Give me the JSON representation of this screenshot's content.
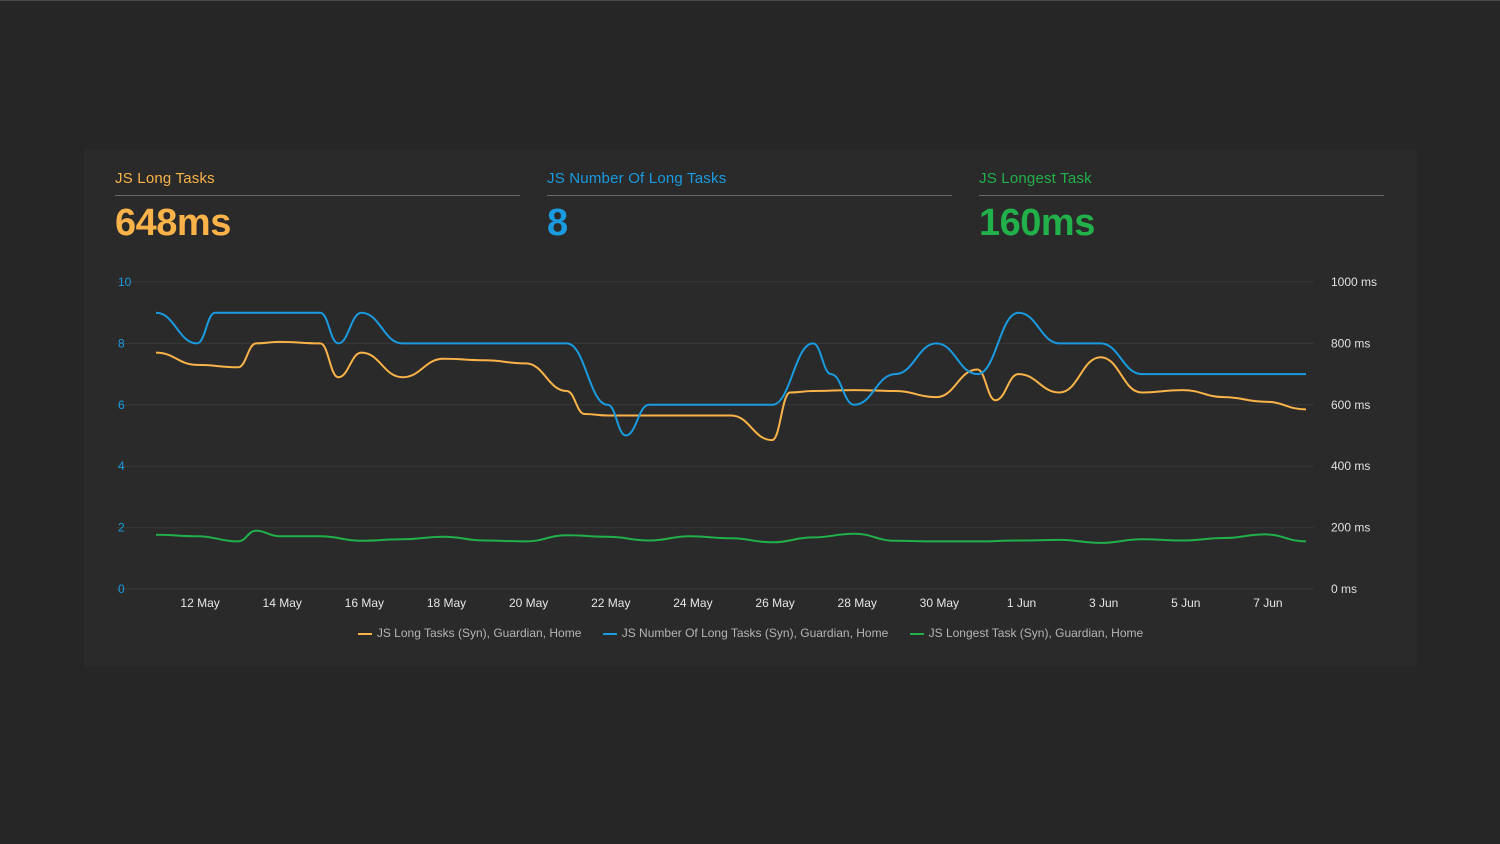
{
  "metrics": [
    {
      "label": "JS Long Tasks",
      "value": "648ms",
      "color": "#f9b349"
    },
    {
      "label": "JS Number Of Long Tasks",
      "value": "8",
      "color": "#1a9be0"
    },
    {
      "label": "JS Longest Task",
      "value": "160ms",
      "color": "#22b04b"
    }
  ],
  "chart_data": {
    "type": "line",
    "x_start": "2019-05-11",
    "x_end": "2019-06-08",
    "x_tick_labels": [
      "12 May",
      "14 May",
      "16 May",
      "18 May",
      "20 May",
      "22 May",
      "24 May",
      "26 May",
      "28 May",
      "30 May",
      "1 Jun",
      "3 Jun",
      "5 Jun",
      "7 Jun"
    ],
    "y_left": {
      "min": 0,
      "max": 10,
      "ticks": [
        "0",
        "2",
        "4",
        "6",
        "8",
        "10"
      ],
      "color": "#1a9be0"
    },
    "y_right": {
      "min": 0,
      "max": 1000,
      "ticks": [
        "0 ms",
        "200 ms",
        "400 ms",
        "600 ms",
        "800 ms",
        "1000 ms"
      ],
      "color": "#e0e0e0"
    },
    "grid": true,
    "legend_position": "bottom",
    "series": [
      {
        "name": "JS Long Tasks (Syn), Guardian, Home",
        "color": "#f9b349",
        "axis": "right",
        "points": [
          [
            "2019-05-11",
            770
          ],
          [
            "2019-05-12",
            730
          ],
          [
            "2019-05-13",
            722
          ],
          [
            "2019-05-13",
            800
          ],
          [
            "2019-05-14",
            805
          ],
          [
            "2019-05-15",
            800
          ],
          [
            "2019-05-15",
            690
          ],
          [
            "2019-05-16",
            770
          ],
          [
            "2019-05-17",
            690
          ],
          [
            "2019-05-18",
            750
          ],
          [
            "2019-05-19",
            745
          ],
          [
            "2019-05-20",
            735
          ],
          [
            "2019-05-21",
            645
          ],
          [
            "2019-05-21",
            570
          ],
          [
            "2019-05-22",
            565
          ],
          [
            "2019-05-23",
            565
          ],
          [
            "2019-05-24",
            565
          ],
          [
            "2019-05-25",
            565
          ],
          [
            "2019-05-26",
            485
          ],
          [
            "2019-05-26",
            640
          ],
          [
            "2019-05-27",
            645
          ],
          [
            "2019-05-28",
            648
          ],
          [
            "2019-05-29",
            645
          ],
          [
            "2019-05-30",
            625
          ],
          [
            "2019-05-31",
            715
          ],
          [
            "2019-05-31",
            615
          ],
          [
            "2019-06-01",
            700
          ],
          [
            "2019-06-02",
            640
          ],
          [
            "2019-06-03",
            755
          ],
          [
            "2019-06-04",
            640
          ],
          [
            "2019-06-05",
            648
          ],
          [
            "2019-06-06",
            625
          ],
          [
            "2019-06-07",
            610
          ],
          [
            "2019-06-08",
            585
          ]
        ]
      },
      {
        "name": "JS Number Of Long Tasks (Syn), Guardian, Home",
        "color": "#1a9be0",
        "axis": "left",
        "points": [
          [
            "2019-05-11",
            9.0
          ],
          [
            "2019-05-12",
            8.0
          ],
          [
            "2019-05-12",
            9.0
          ],
          [
            "2019-05-13",
            9.0
          ],
          [
            "2019-05-14",
            9.0
          ],
          [
            "2019-05-15",
            9.0
          ],
          [
            "2019-05-15",
            8.0
          ],
          [
            "2019-05-16",
            9.0
          ],
          [
            "2019-05-17",
            8.0
          ],
          [
            "2019-05-18",
            8.0
          ],
          [
            "2019-05-19",
            8.0
          ],
          [
            "2019-05-20",
            8.0
          ],
          [
            "2019-05-21",
            8.0
          ],
          [
            "2019-05-22",
            6.0
          ],
          [
            "2019-05-22",
            5.0
          ],
          [
            "2019-05-23",
            6.0
          ],
          [
            "2019-05-24",
            6.0
          ],
          [
            "2019-05-25",
            6.0
          ],
          [
            "2019-05-26",
            6.0
          ],
          [
            "2019-05-27",
            8.0
          ],
          [
            "2019-05-27",
            7.0
          ],
          [
            "2019-05-28",
            6.0
          ],
          [
            "2019-05-29",
            7.0
          ],
          [
            "2019-05-30",
            8.0
          ],
          [
            "2019-05-31",
            7.0
          ],
          [
            "2019-06-01",
            9.0
          ],
          [
            "2019-06-02",
            8.0
          ],
          [
            "2019-06-03",
            8.0
          ],
          [
            "2019-06-04",
            7.0
          ],
          [
            "2019-06-05",
            7.0
          ],
          [
            "2019-06-06",
            7.0
          ],
          [
            "2019-06-07",
            7.0
          ],
          [
            "2019-06-08",
            7.0
          ]
        ]
      },
      {
        "name": "JS Longest Task (Syn), Guardian, Home",
        "color": "#22b04b",
        "axis": "right",
        "points": [
          [
            "2019-05-11",
            177
          ],
          [
            "2019-05-12",
            172
          ],
          [
            "2019-05-13",
            155
          ],
          [
            "2019-05-13",
            190
          ],
          [
            "2019-05-14",
            172
          ],
          [
            "2019-05-15",
            172
          ],
          [
            "2019-05-16",
            157
          ],
          [
            "2019-05-17",
            162
          ],
          [
            "2019-05-18",
            170
          ],
          [
            "2019-05-19",
            158
          ],
          [
            "2019-05-20",
            155
          ],
          [
            "2019-05-21",
            175
          ],
          [
            "2019-05-22",
            170
          ],
          [
            "2019-05-23",
            158
          ],
          [
            "2019-05-24",
            172
          ],
          [
            "2019-05-25",
            165
          ],
          [
            "2019-05-26",
            152
          ],
          [
            "2019-05-27",
            168
          ],
          [
            "2019-05-28",
            180
          ],
          [
            "2019-05-29",
            157
          ],
          [
            "2019-05-30",
            155
          ],
          [
            "2019-05-31",
            155
          ],
          [
            "2019-06-01",
            158
          ],
          [
            "2019-06-02",
            160
          ],
          [
            "2019-06-03",
            150
          ],
          [
            "2019-06-04",
            162
          ],
          [
            "2019-06-05",
            158
          ],
          [
            "2019-06-06",
            166
          ],
          [
            "2019-06-07",
            178
          ],
          [
            "2019-06-08",
            155
          ]
        ]
      }
    ]
  }
}
